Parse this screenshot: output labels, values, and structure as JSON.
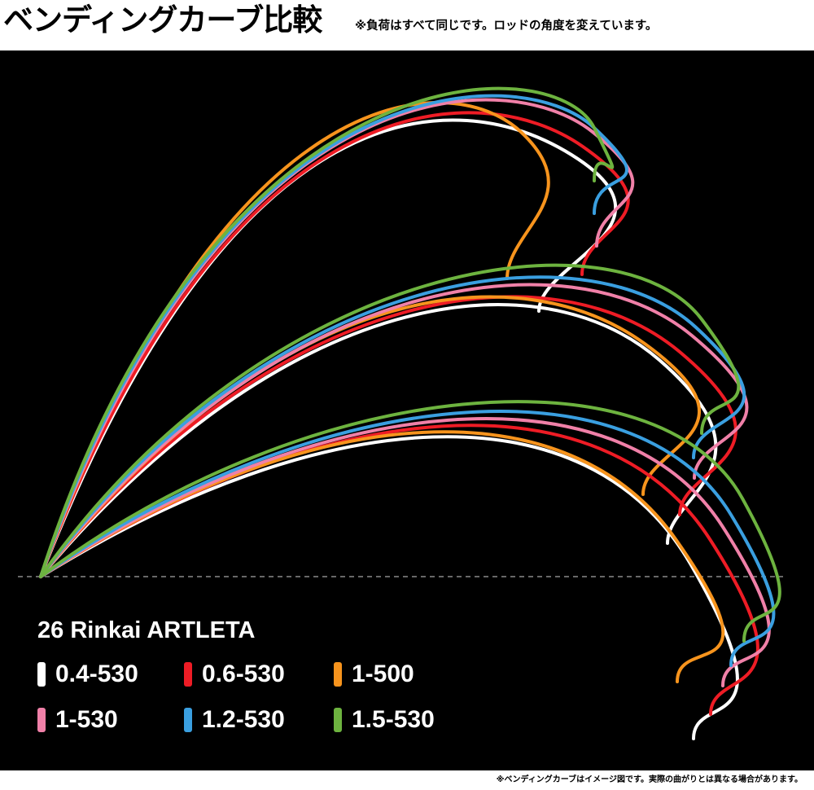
{
  "header": {
    "title": "ベンディングカーブ比較",
    "note": "※負荷はすべて同じです。ロッドの角度を変えています。"
  },
  "footer": {
    "note": "※ベンディングカーブはイメージ図です。実際の曲がりとは異なる場合があります。"
  },
  "chart_data": {
    "type": "line",
    "title": "26 Rinkai ARTLETA",
    "subtitle": "",
    "xlabel": "",
    "ylabel": "",
    "grid": false,
    "baseline": "dashed horizontal reference line through the rod butt",
    "legend_position": "bottom-left",
    "angles": [
      "high",
      "middle",
      "low"
    ],
    "series": [
      {
        "name": "0.4-530",
        "color": "#ffffff"
      },
      {
        "name": "0.6-530",
        "color": "#ee1c25"
      },
      {
        "name": "1-500",
        "color": "#f7941d"
      },
      {
        "name": "1-530",
        "color": "#f080a8"
      },
      {
        "name": "1.2-530",
        "color": "#3a9fe0"
      },
      {
        "name": "1.5-530",
        "color": "#6db33f"
      }
    ]
  }
}
